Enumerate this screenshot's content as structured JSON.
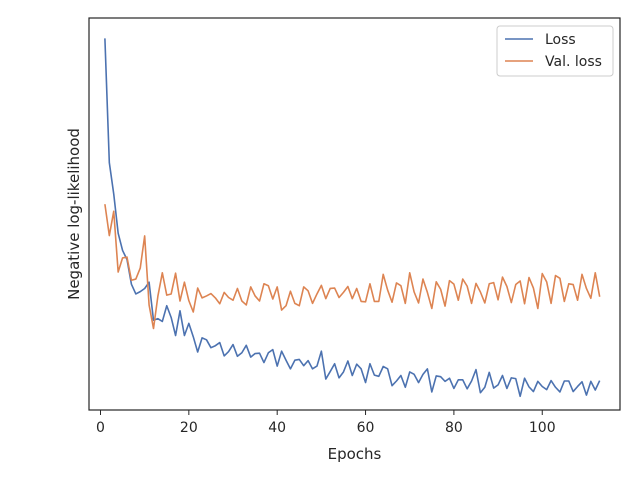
{
  "chart_data": {
    "type": "line",
    "title": "",
    "xlabel": "Epochs",
    "ylabel": "Negative log-likelihood",
    "xlim": [
      -2.6,
      117.6
    ],
    "ylim": [
      0,
      1
    ],
    "y_tick_labels_shown": false,
    "xticks": [
      0,
      20,
      40,
      60,
      80,
      100
    ],
    "grid": false,
    "legend_position": "top-right",
    "series": [
      {
        "name": "Loss",
        "color": "#4c72b0",
        "x": [
          1,
          2,
          3,
          4,
          5,
          6,
          7,
          8,
          9,
          10,
          11,
          12,
          13,
          14,
          15,
          16,
          17,
          18,
          19,
          20,
          21,
          22,
          23,
          24,
          25,
          26,
          27,
          28,
          29,
          30,
          31,
          32,
          33,
          34,
          35,
          36,
          37,
          38,
          39,
          40,
          41,
          42,
          43,
          44,
          45,
          46,
          47,
          48,
          49,
          50,
          51,
          52,
          53,
          54,
          55,
          56,
          57,
          58,
          59,
          60,
          61,
          62,
          63,
          64,
          65,
          66,
          67,
          68,
          69,
          70,
          71,
          72,
          73,
          74,
          75,
          76,
          77,
          78,
          79,
          80,
          81,
          82,
          83,
          84,
          85,
          86,
          87,
          88,
          89,
          90,
          91,
          92,
          93,
          94,
          95,
          96,
          97,
          98,
          99,
          100,
          101,
          102,
          103,
          104,
          105,
          106,
          107,
          108,
          109,
          110,
          111,
          112,
          113
        ],
        "values": [
          0.948,
          0.631,
          0.551,
          0.451,
          0.407,
          0.384,
          0.321,
          0.296,
          0.302,
          0.31,
          0.326,
          0.229,
          0.233,
          0.226,
          0.266,
          0.236,
          0.19,
          0.253,
          0.19,
          0.221,
          0.187,
          0.148,
          0.184,
          0.179,
          0.159,
          0.164,
          0.172,
          0.138,
          0.149,
          0.167,
          0.137,
          0.146,
          0.165,
          0.135,
          0.144,
          0.145,
          0.121,
          0.146,
          0.154,
          0.112,
          0.15,
          0.127,
          0.105,
          0.127,
          0.129,
          0.113,
          0.126,
          0.105,
          0.112,
          0.15,
          0.079,
          0.098,
          0.118,
          0.082,
          0.097,
          0.125,
          0.088,
          0.117,
          0.105,
          0.07,
          0.118,
          0.089,
          0.086,
          0.111,
          0.105,
          0.062,
          0.074,
          0.088,
          0.058,
          0.097,
          0.091,
          0.07,
          0.091,
          0.105,
          0.046,
          0.087,
          0.085,
          0.073,
          0.081,
          0.055,
          0.077,
          0.077,
          0.054,
          0.074,
          0.103,
          0.044,
          0.058,
          0.096,
          0.056,
          0.064,
          0.088,
          0.055,
          0.082,
          0.08,
          0.035,
          0.081,
          0.059,
          0.047,
          0.073,
          0.06,
          0.052,
          0.075,
          0.058,
          0.046,
          0.074,
          0.074,
          0.047,
          0.06,
          0.072,
          0.038,
          0.073,
          0.051,
          0.075
        ]
      },
      {
        "name": "Val. loss",
        "color": "#dd8452",
        "x": [
          1,
          2,
          3,
          4,
          5,
          6,
          7,
          8,
          9,
          10,
          11,
          12,
          13,
          14,
          15,
          16,
          17,
          18,
          19,
          20,
          21,
          22,
          23,
          24,
          25,
          26,
          27,
          28,
          29,
          30,
          31,
          32,
          33,
          34,
          35,
          36,
          37,
          38,
          39,
          40,
          41,
          42,
          43,
          44,
          45,
          46,
          47,
          48,
          49,
          50,
          51,
          52,
          53,
          54,
          55,
          56,
          57,
          58,
          59,
          60,
          61,
          62,
          63,
          64,
          65,
          66,
          67,
          68,
          69,
          70,
          71,
          72,
          73,
          74,
          75,
          76,
          77,
          78,
          79,
          80,
          81,
          82,
          83,
          84,
          85,
          86,
          87,
          88,
          89,
          90,
          91,
          92,
          93,
          94,
          95,
          96,
          97,
          98,
          99,
          100,
          101,
          102,
          103,
          104,
          105,
          106,
          107,
          108,
          109,
          110,
          111,
          112,
          113
        ],
        "values": [
          0.525,
          0.445,
          0.507,
          0.352,
          0.388,
          0.39,
          0.331,
          0.334,
          0.362,
          0.444,
          0.268,
          0.208,
          0.291,
          0.35,
          0.293,
          0.296,
          0.349,
          0.278,
          0.326,
          0.279,
          0.25,
          0.311,
          0.286,
          0.291,
          0.297,
          0.286,
          0.271,
          0.3,
          0.287,
          0.28,
          0.31,
          0.278,
          0.268,
          0.314,
          0.291,
          0.278,
          0.322,
          0.317,
          0.283,
          0.314,
          0.255,
          0.266,
          0.303,
          0.272,
          0.266,
          0.314,
          0.304,
          0.272,
          0.296,
          0.318,
          0.284,
          0.31,
          0.311,
          0.287,
          0.3,
          0.315,
          0.284,
          0.31,
          0.277,
          0.276,
          0.322,
          0.277,
          0.277,
          0.346,
          0.306,
          0.275,
          0.324,
          0.317,
          0.272,
          0.35,
          0.301,
          0.273,
          0.334,
          0.3,
          0.259,
          0.327,
          0.308,
          0.265,
          0.33,
          0.321,
          0.28,
          0.334,
          0.316,
          0.272,
          0.323,
          0.301,
          0.273,
          0.322,
          0.325,
          0.281,
          0.339,
          0.315,
          0.274,
          0.32,
          0.329,
          0.271,
          0.338,
          0.311,
          0.259,
          0.348,
          0.327,
          0.272,
          0.343,
          0.336,
          0.277,
          0.322,
          0.32,
          0.28,
          0.346,
          0.31,
          0.285,
          0.35,
          0.289
        ]
      }
    ]
  }
}
